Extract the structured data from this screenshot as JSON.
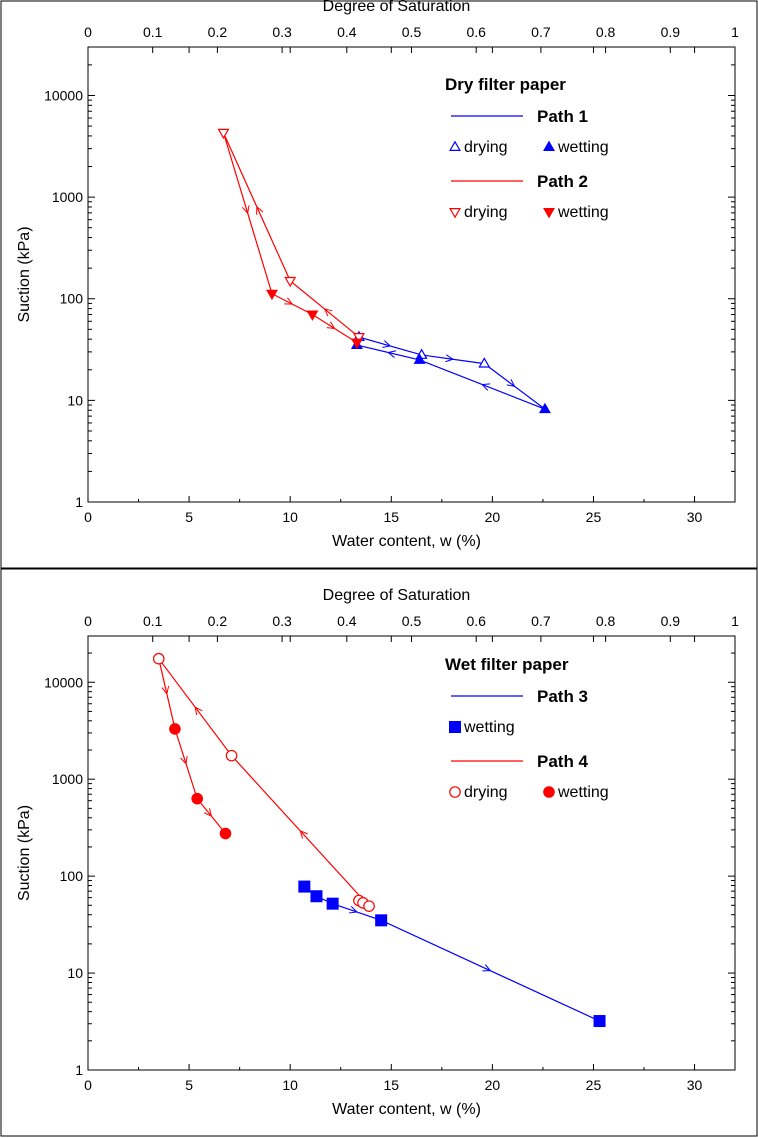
{
  "chart_data": [
    {
      "type": "scatter",
      "xlabel": "Water content, w (%)",
      "x2label": "Degree of Saturation",
      "ylabel": "Suction (kPa)",
      "xlim": [
        0,
        32
      ],
      "x2lim": [
        0,
        1
      ],
      "ylim": [
        1,
        30000
      ],
      "yscale": "log",
      "xticks": [
        "0",
        "5",
        "10",
        "15",
        "20",
        "25",
        "30"
      ],
      "x2ticks": [
        "0",
        "0.1",
        "0.2",
        "0.3",
        "0.4",
        "0.5",
        "0.6",
        "0.7",
        "0.8",
        "0.9",
        "1"
      ],
      "yticks": [
        "1",
        "10",
        "100",
        "1000",
        "10000"
      ],
      "grid": false,
      "legend_position": "top-right",
      "legend_title": "Dry filter paper",
      "legend_rows": [
        {
          "line_label": "Path 1",
          "color": "#0000ff",
          "items": [
            {
              "symbol": "triangle-up-open",
              "label": "drying"
            },
            {
              "symbol": "triangle-up-filled",
              "label": "wetting"
            }
          ]
        },
        {
          "line_label": "Path 2",
          "color": "#ff0000",
          "items": [
            {
              "symbol": "triangle-down-open",
              "label": "drying"
            },
            {
              "symbol": "triangle-down-filled",
              "label": "wetting"
            }
          ]
        }
      ],
      "series": [
        {
          "name": "Path 1",
          "color": "#0000ff",
          "line": [
            [
              13.4,
              42
            ],
            [
              16.5,
              28
            ],
            [
              19.6,
              23
            ],
            [
              22.6,
              8.2
            ],
            [
              16.4,
              25
            ],
            [
              13.3,
              35
            ]
          ],
          "arrows": [
            [
              0,
              1
            ],
            [
              1,
              2
            ],
            [
              2,
              3
            ],
            [
              3,
              4
            ],
            [
              4,
              5
            ]
          ],
          "points": [
            {
              "x": 13.4,
              "y": 42,
              "s": "tu-o"
            },
            {
              "x": 16.5,
              "y": 28,
              "s": "tu-o"
            },
            {
              "x": 19.6,
              "y": 23,
              "s": "tu-o"
            },
            {
              "x": 22.6,
              "y": 8.2,
              "s": "tu-f"
            },
            {
              "x": 16.4,
              "y": 25,
              "s": "tu-f"
            },
            {
              "x": 13.3,
              "y": 35,
              "s": "tu-f"
            }
          ]
        },
        {
          "name": "Path 2",
          "color": "#ff0000",
          "line": [
            [
              13.4,
              42
            ],
            [
              10.0,
              150
            ],
            [
              6.7,
              4300
            ],
            [
              9.1,
              112
            ],
            [
              11.1,
              70
            ],
            [
              13.3,
              37
            ]
          ],
          "arrows": [
            [
              0,
              1
            ],
            [
              1,
              2
            ],
            [
              2,
              3
            ],
            [
              3,
              4
            ],
            [
              4,
              5
            ]
          ],
          "points": [
            {
              "x": 13.4,
              "y": 42,
              "s": "td-o"
            },
            {
              "x": 10.0,
              "y": 150,
              "s": "td-o"
            },
            {
              "x": 6.7,
              "y": 4300,
              "s": "td-o"
            },
            {
              "x": 9.1,
              "y": 112,
              "s": "td-f"
            },
            {
              "x": 11.1,
              "y": 70,
              "s": "td-f"
            },
            {
              "x": 13.3,
              "y": 37,
              "s": "td-f"
            }
          ]
        }
      ]
    },
    {
      "type": "scatter",
      "xlabel": "Water content, w (%)",
      "x2label": "Degree of Saturation",
      "ylabel": "Suction (kPa)",
      "xlim": [
        0,
        32
      ],
      "x2lim": [
        0,
        1
      ],
      "ylim": [
        1,
        30000
      ],
      "yscale": "log",
      "xticks": [
        "0",
        "5",
        "10",
        "15",
        "20",
        "25",
        "30"
      ],
      "x2ticks": [
        "0",
        "0.1",
        "0.2",
        "0.3",
        "0.4",
        "0.5",
        "0.6",
        "0.7",
        "0.8",
        "0.9",
        "1"
      ],
      "yticks": [
        "1",
        "10",
        "100",
        "1000",
        "10000"
      ],
      "grid": false,
      "legend_position": "top-right",
      "legend_title": "Wet filter paper",
      "legend_rows": [
        {
          "line_label": "Path 3",
          "color": "#0000ff",
          "items": [
            {
              "symbol": "square-filled",
              "label": "wetting"
            }
          ]
        },
        {
          "line_label": "Path 4",
          "color": "#ff0000",
          "items": [
            {
              "symbol": "circle-open",
              "label": "drying"
            },
            {
              "symbol": "circle-filled",
              "label": "wetting"
            }
          ]
        }
      ],
      "series": [
        {
          "name": "Path 3",
          "color": "#0000ff",
          "line": [
            [
              10.7,
              78
            ],
            [
              11.3,
              62
            ],
            [
              12.1,
              52
            ],
            [
              14.5,
              35
            ],
            [
              25.3,
              3.2
            ]
          ],
          "arrows": [
            [
              2,
              3
            ],
            [
              3,
              4
            ]
          ],
          "points": [
            {
              "x": 10.7,
              "y": 78,
              "s": "sq-f"
            },
            {
              "x": 11.3,
              "y": 62,
              "s": "sq-f"
            },
            {
              "x": 12.1,
              "y": 52,
              "s": "sq-f"
            },
            {
              "x": 14.5,
              "y": 35,
              "s": "sq-f"
            },
            {
              "x": 25.3,
              "y": 3.2,
              "s": "sq-f"
            }
          ]
        },
        {
          "name": "Path 4",
          "color": "#ff0000",
          "line": [
            [
              13.9,
              49
            ],
            [
              7.1,
              1750
            ],
            [
              3.5,
              17500
            ],
            [
              4.3,
              3300
            ],
            [
              5.4,
              630
            ],
            [
              6.8,
              275
            ]
          ],
          "arrows": [
            [
              0,
              1
            ],
            [
              1,
              2
            ],
            [
              2,
              3
            ],
            [
              3,
              4
            ],
            [
              4,
              5
            ]
          ],
          "extra_points_on_line": [
            [
              13.4,
              56
            ],
            [
              13.6,
              53
            ]
          ],
          "points": [
            {
              "x": 13.4,
              "y": 56,
              "s": "ci-o"
            },
            {
              "x": 13.6,
              "y": 53,
              "s": "ci-o"
            },
            {
              "x": 13.9,
              "y": 49,
              "s": "ci-o"
            },
            {
              "x": 7.1,
              "y": 1750,
              "s": "ci-o"
            },
            {
              "x": 3.5,
              "y": 17500,
              "s": "ci-o"
            },
            {
              "x": 4.3,
              "y": 3300,
              "s": "ci-f"
            },
            {
              "x": 5.4,
              "y": 630,
              "s": "ci-f"
            },
            {
              "x": 6.8,
              "y": 275,
              "s": "ci-f"
            }
          ]
        }
      ]
    }
  ]
}
